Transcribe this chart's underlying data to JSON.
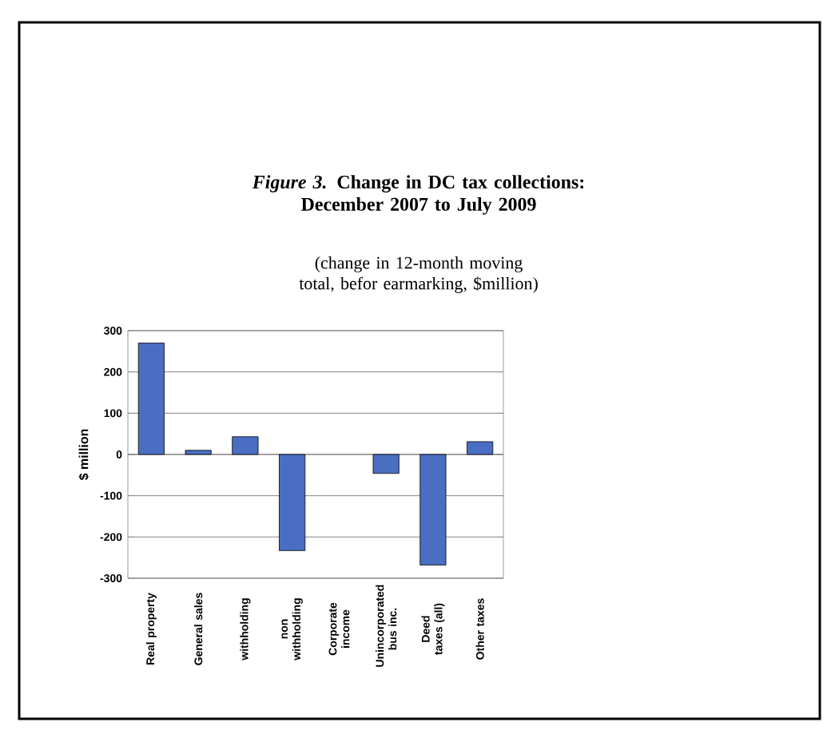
{
  "chart_data": {
    "type": "bar",
    "title": "*Figure 3.* Change in DC tax collections: December 2007 to July 2009",
    "subtitle": "(change in 12-month moving total, befor earmarking, $million)",
    "ylabel": "$ million",
    "categories": [
      "Real property",
      "General sales",
      "withholding",
      "non withholding",
      "Corporate income",
      "Unincorporated bus inc.",
      "Deed taxes (all)",
      "Other taxes"
    ],
    "values": [
      270,
      10,
      43,
      -233,
      null,
      -46,
      -268,
      31
    ],
    "color": "#4a6fc2",
    "ylim": [
      -300,
      300
    ],
    "yticks": [
      -300,
      -200,
      -100,
      0,
      100,
      200,
      300
    ],
    "grid": "y"
  }
}
